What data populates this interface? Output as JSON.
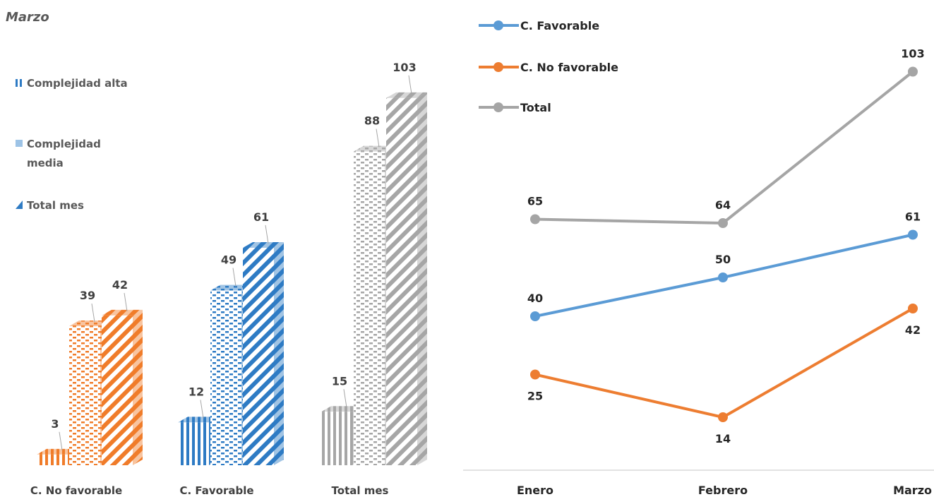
{
  "chart_data": [
    {
      "type": "bar",
      "subtitle": "Marzo",
      "categories": [
        "C. No favorable",
        "C. Favorable",
        "Total mes"
      ],
      "series": [
        {
          "name": "Complejidad alta",
          "values": [
            3,
            12,
            15
          ],
          "pattern": "vertical-stripes"
        },
        {
          "name": "Complejidad media",
          "values": [
            39,
            49,
            88
          ],
          "pattern": "dashes"
        },
        {
          "name": "Total mes",
          "values": [
            42,
            61,
            103
          ],
          "pattern": "diagonal-stripes"
        }
      ],
      "category_colors": [
        "#F07C2A",
        "#2E7BC4",
        "#A6A6A6"
      ],
      "ylim": [
        0,
        110
      ],
      "three_d": true,
      "legend_position": "left",
      "grid": false
    },
    {
      "type": "line",
      "categories": [
        "Enero",
        "Febrero",
        "Marzo"
      ],
      "series": [
        {
          "name": "C. Favorable",
          "values": [
            40,
            50,
            61
          ],
          "color": "#5B9BD5"
        },
        {
          "name": "C. No favorable",
          "values": [
            25,
            14,
            42
          ],
          "color": "#ED7D31"
        },
        {
          "name": "Total",
          "values": [
            65,
            64,
            103
          ],
          "color": "#A5A5A5"
        }
      ],
      "ylim": [
        0,
        115
      ],
      "legend_position": "top-left",
      "grid": false
    }
  ]
}
